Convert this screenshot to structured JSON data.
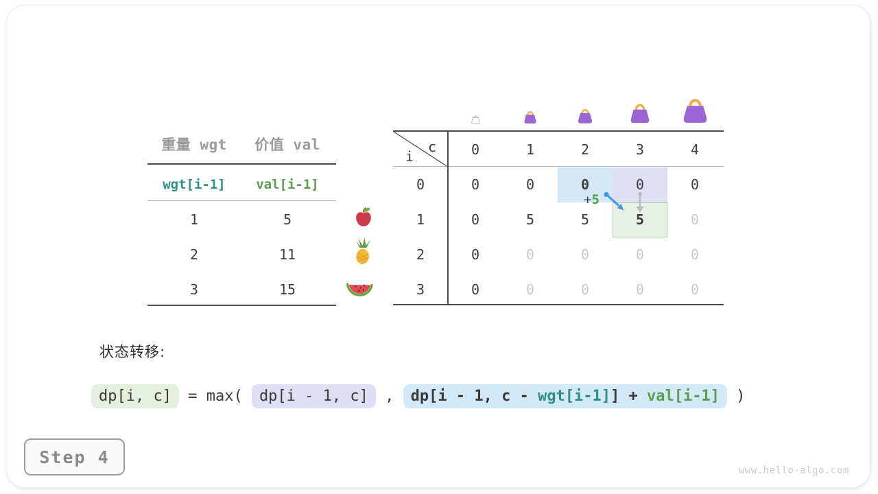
{
  "watermark": "www.hello-algo.com",
  "step": {
    "label": "Step 4"
  },
  "items_table": {
    "col1_header": "重量 wgt",
    "col2_header": "价值 val",
    "wgt_expr": "wgt[i-1]",
    "val_expr": "val[i-1]",
    "rows": [
      {
        "wgt": "1",
        "val": "5",
        "fruit": "apple"
      },
      {
        "wgt": "2",
        "val": "11",
        "fruit": "pineapple"
      },
      {
        "wgt": "3",
        "val": "15",
        "fruit": "watermelon"
      }
    ]
  },
  "dp_table": {
    "corner_col_label": "c",
    "corner_row_label": "i",
    "col_headers": [
      "0",
      "1",
      "2",
      "3",
      "4"
    ],
    "row_headers": [
      "0",
      "1",
      "2",
      "3"
    ],
    "cells": [
      [
        {
          "v": "0"
        },
        {
          "v": "0"
        },
        {
          "v": "0",
          "bold": true,
          "bg": "blue"
        },
        {
          "v": "0",
          "bg": "lavender"
        },
        {
          "v": "0"
        }
      ],
      [
        {
          "v": "0"
        },
        {
          "v": "5"
        },
        {
          "v": "5"
        },
        {
          "v": "5",
          "bold": true,
          "bg": "green"
        },
        {
          "v": "0",
          "dim": true
        }
      ],
      [
        {
          "v": "0"
        },
        {
          "v": "0",
          "dim": true
        },
        {
          "v": "0",
          "dim": true
        },
        {
          "v": "0",
          "dim": true
        },
        {
          "v": "0",
          "dim": true
        }
      ],
      [
        {
          "v": "0"
        },
        {
          "v": "0",
          "dim": true
        },
        {
          "v": "0",
          "dim": true
        },
        {
          "v": "0",
          "dim": true
        },
        {
          "v": "0",
          "dim": true
        }
      ]
    ],
    "annotation": {
      "plus": "+",
      "value": "5"
    },
    "bags": [
      {
        "col": 0,
        "size": 15,
        "style": "outline"
      },
      {
        "col": 1,
        "size": 22,
        "style": "filled"
      },
      {
        "col": 2,
        "size": 26,
        "style": "filled"
      },
      {
        "col": 3,
        "size": 34,
        "style": "filled"
      },
      {
        "col": 4,
        "size": 43,
        "style": "filled"
      }
    ]
  },
  "transition": {
    "label": "状态转移:",
    "lhs": "dp[i, c]",
    "op1": " = max( ",
    "arg1": "dp[i - 1, c]",
    "op2": " , ",
    "arg2_pre": "dp[i - 1, c - ",
    "arg2_wgt": "wgt[i-1]",
    "arg2_mid": "] + ",
    "arg2_val": "val[i-1]",
    "close": " )"
  },
  "colors": {
    "teal": "#2f8f87",
    "green": "#5a9e52",
    "plus_green": "#4f9e43",
    "arrow_blue": "#3e96e4",
    "arrow_gray": "#bbbbbb",
    "chip_green_bg": "#e4efdc",
    "chip_lavender_bg": "#dfdff6",
    "chip_blue_bg": "#d4e9f7",
    "hl_blue": "#d5e8f7",
    "hl_lavender": "#dee0f6",
    "hl_green": "#e7f1e3",
    "hl_green_border": "#a5c9a0",
    "bag_purple": "#9b66d4",
    "bag_handle": "#f2ae4a"
  }
}
